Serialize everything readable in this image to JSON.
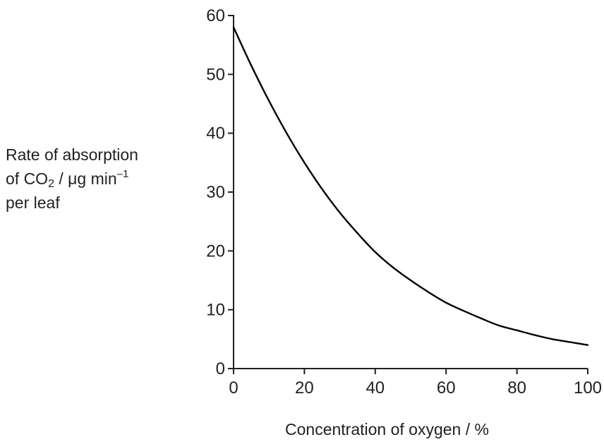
{
  "chart_data": {
    "type": "line",
    "title": "",
    "xlabel": "Concentration of oxygen / %",
    "ylabel": {
      "line1": "Rate of absorption",
      "line2_prefix": "of CO",
      "line2_sub": "2",
      "line2_unit": " / μg min",
      "line2_sup": "–1",
      "line3": "per leaf"
    },
    "xlim": [
      0,
      100
    ],
    "ylim": [
      0,
      60
    ],
    "x_ticks": [
      0,
      20,
      40,
      60,
      80,
      100
    ],
    "y_ticks": [
      0,
      10,
      20,
      30,
      40,
      50,
      60
    ],
    "grid": false,
    "series": [
      {
        "x": [
          0,
          5,
          10,
          15,
          20,
          25,
          30,
          35,
          40,
          45,
          50,
          55,
          60,
          65,
          70,
          75,
          80,
          85,
          90,
          95,
          100
        ],
        "y": [
          58,
          51.5,
          45.5,
          40,
          35,
          30.5,
          26.5,
          23,
          19.8,
          17.2,
          15,
          13,
          11.2,
          9.8,
          8.5,
          7.3,
          6.5,
          5.7,
          5,
          4.5,
          4
        ]
      }
    ],
    "line_color": "#000000"
  }
}
